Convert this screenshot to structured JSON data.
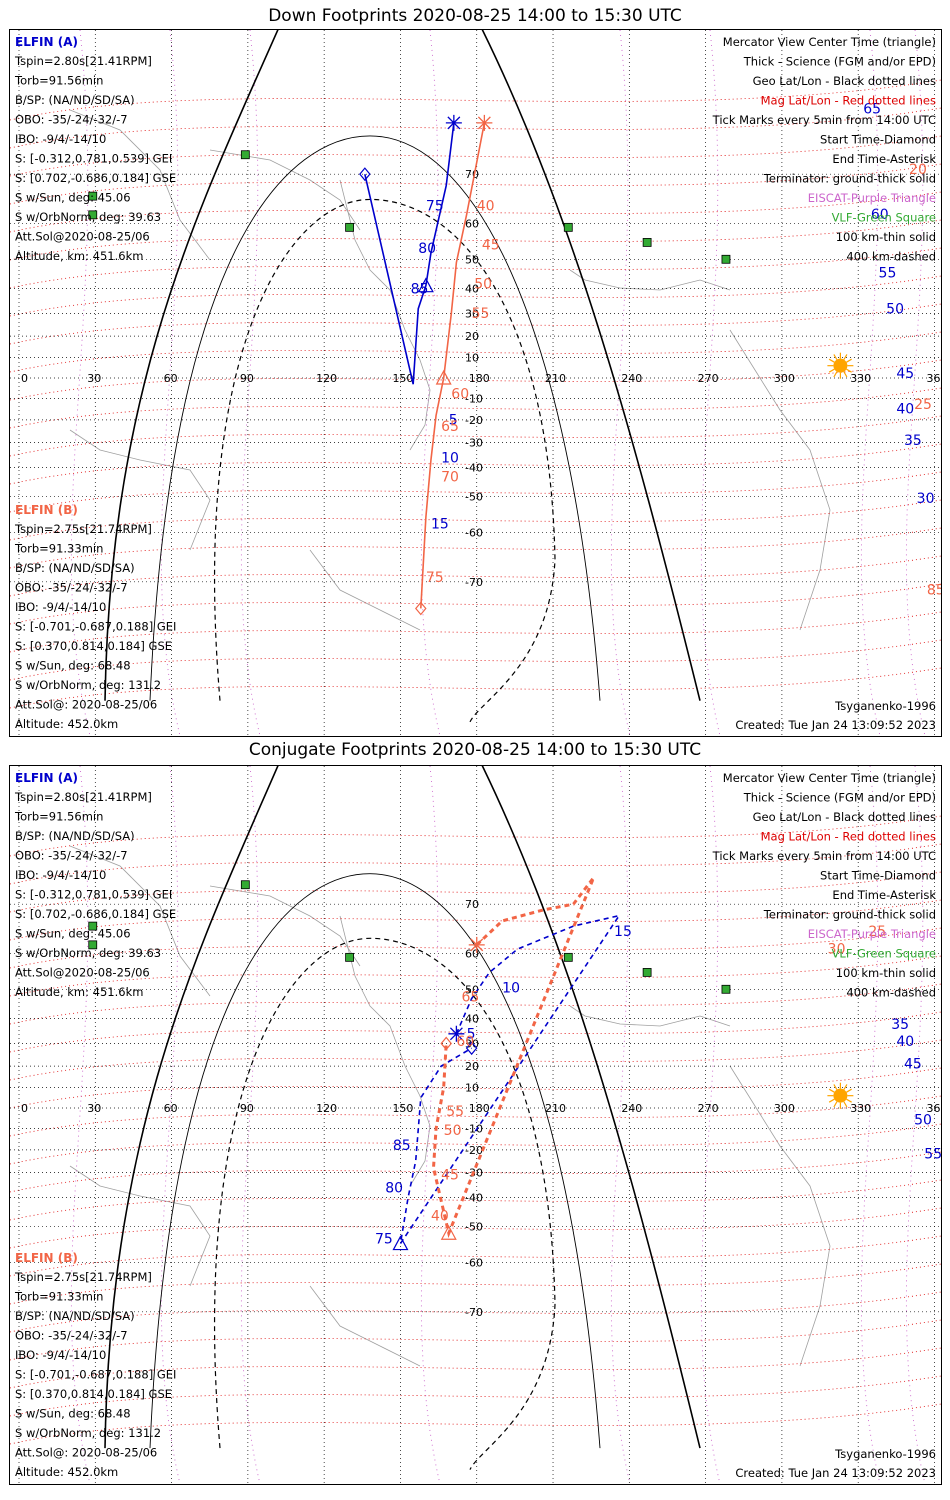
{
  "panels": [
    {
      "title": "Down Footprints 2020-08-25 14:00 to 15:30 UTC",
      "sat_a": {
        "name": "ELFIN (A)",
        "lines": [
          "Tspin=2.80s[21.41RPM]",
          "Torb=91.56min",
          "B/SP: (NA/ND/SD/SA)",
          "OBO: -35/-24/-32/-7",
          "IBO: -9/4/-14/10",
          "S: [-0.312,0.781,0.539] GEI",
          "S: [0.702,-0.686,0.184] GSE",
          "S w/Sun, deg: 45.06",
          "S w/OrbNorm, deg: 39.63",
          "Att.Sol@2020-08-25/06",
          "Altitude, km: 451.6km"
        ]
      },
      "sat_b": {
        "name": "ELFIN (B)",
        "lines": [
          "Tspin=2.75s[21.74RPM]",
          "Torb=91.33min",
          "B/SP: (NA/ND/SD/SA)",
          "OBO: -35/-24/-32/-7",
          "IBO: -9/4/-14/10",
          "S: [-0.701,-0.687,0.188] GEI",
          "S: [0.370,0.814,0.184] GSE",
          "S w/Sun, deg: 68.48",
          "S w/OrbNorm, deg: 131.2",
          "Att.Sol@: 2020-08-25/06",
          "Altitude: 452.0km"
        ]
      },
      "legend": [
        "Mercator View Center Time (triangle)",
        "Thick - Science (FGM and/or EPD)",
        "Geo Lat/Lon - Black dotted lines",
        "Mag Lat/Lon - Red dotted lines",
        "Tick Marks every 5min from 14:00 UTC",
        "Start Time-Diamond",
        "End Time-Asterisk",
        "Terminator: ground-thick solid",
        "EISCAT-Purple Triangle",
        "VLF-Green Square",
        "100 km-thin solid",
        "400 km-dashed"
      ],
      "model": "Tsyganenko-1996",
      "created": "Created: Tue Jan 24 13:09:52 2023"
    },
    {
      "title": "Conjugate Footprints 2020-08-25 14:00 to 15:30 UTC",
      "sat_a": {
        "name": "ELFIN (A)",
        "lines": [
          "Tspin=2.80s[21.41RPM]",
          "Torb=91.56min",
          "B/SP: (NA/ND/SD/SA)",
          "OBO: -35/-24/-32/-7",
          "IBO: -9/4/-14/10",
          "S: [-0.312,0.781,0.539] GEI",
          "S: [0.702,-0.686,0.184] GSE",
          "S w/Sun, deg: 45.06",
          "S w/OrbNorm, deg: 39.63",
          "Att.Sol@2020-08-25/06",
          "Altitude, km: 451.6km"
        ]
      },
      "sat_b": {
        "name": "ELFIN (B)",
        "lines": [
          "Tspin=2.75s[21.74RPM]",
          "Torb=91.33min",
          "B/SP: (NA/ND/SD/SA)",
          "OBO: -35/-24/-32/-7",
          "IBO: -9/4/-14/10",
          "S: [-0.701,-0.687,0.188] GEI",
          "S: [0.370,0.814,0.184] GSE",
          "S w/Sun, deg: 68.48",
          "S w/OrbNorm, deg: 131.2",
          "Att.Sol@: 2020-08-25/06",
          "Altitude: 452.0km"
        ]
      },
      "legend": [
        "Mercator View Center Time (triangle)",
        "Thick - Science (FGM and/or EPD)",
        "Geo Lat/Lon - Black dotted lines",
        "Mag Lat/Lon - Red dotted lines",
        "Tick Marks every 5min from 14:00 UTC",
        "Start Time-Diamond",
        "End Time-Asterisk",
        "Terminator: ground-thick solid",
        "EISCAT-Purple Triangle",
        "VLF-Green Square",
        "100 km-thin solid",
        "400 km-dashed"
      ],
      "model": "Tsyganenko-1996",
      "created": "Created: Tue Jan 24 13:09:52 2023"
    }
  ],
  "colors": {
    "sat_a": "#0000cc",
    "sat_b": "#f26546",
    "geo_grid": "#000000",
    "mag_grid": "#dd0000",
    "eiscat": "#cc66cc",
    "vlf": "#33aa33",
    "sun": "#ffa500",
    "coast": "#a0a0a0"
  },
  "chart_data": [
    {
      "type": "scatter",
      "title": "Down Footprints 2020-08-25 14:00 to 15:30 UTC",
      "lon_ticks": [
        0,
        30,
        60,
        90,
        120,
        150,
        180,
        210,
        240,
        270,
        300,
        330,
        360
      ],
      "lat_ticks": [
        70,
        60,
        50,
        40,
        30,
        20,
        10,
        -10,
        -20,
        -30,
        -40,
        -50,
        -60,
        -70
      ],
      "xlim": [
        0,
        360
      ],
      "ylim": [
        -80,
        80
      ],
      "grid": true,
      "vlf_stations": [
        [
          89,
          73
        ],
        [
          29,
          66
        ],
        [
          29,
          62
        ],
        [
          130,
          59
        ],
        [
          216,
          59
        ],
        [
          247,
          55
        ],
        [
          278,
          50
        ]
      ],
      "sun": [
        323,
        6
      ],
      "series": [
        {
          "name": "ELFIN (A)",
          "points": [
            [
              171,
              77
            ],
            [
              168,
              68
            ],
            [
              165,
              61
            ],
            [
              162,
              52
            ],
            [
              160,
              41
            ],
            [
              157,
              32
            ],
            [
              155,
              -3
            ],
            [
              136,
              70
            ]
          ],
          "tick_labels": [
            {
              "text": "75",
              "at": [
                160,
                63
              ]
            },
            {
              "text": "80",
              "at": [
                157,
                52
              ]
            },
            {
              "text": "85",
              "at": [
                154,
                38
              ]
            },
            {
              "text": "5",
              "at": [
                169,
                -22
              ]
            },
            {
              "text": "10",
              "at": [
                166,
                -38
              ]
            },
            {
              "text": "15",
              "at": [
                162,
                -59
              ]
            },
            {
              "text": "65",
              "at": [
                332,
                78
              ]
            },
            {
              "text": "60",
              "at": [
                335,
                61
              ]
            },
            {
              "text": "55",
              "at": [
                338,
                44
              ]
            },
            {
              "text": "50",
              "at": [
                341,
                30
              ]
            },
            {
              "text": "45",
              "at": [
                345,
                0
              ]
            },
            {
              "text": "40",
              "at": [
                345,
                -17
              ]
            },
            {
              "text": "35",
              "at": [
                348,
                -31
              ]
            },
            {
              "text": "30",
              "at": [
                353,
                -52
              ]
            }
          ]
        },
        {
          "name": "ELFIN (B)",
          "points": [
            [
              183,
              77
            ],
            [
              176,
              62
            ],
            [
              172,
              49
            ],
            [
              170,
              30
            ],
            [
              167,
              0
            ],
            [
              164,
              -18
            ],
            [
              162,
              -37
            ],
            [
              160,
              -56
            ],
            [
              158,
              -74
            ]
          ],
          "tick_labels": [
            {
              "text": "40",
              "at": [
                180,
                63
              ]
            },
            {
              "text": "45",
              "at": [
                182,
                53
              ]
            },
            {
              "text": "50",
              "at": [
                179,
                40
              ]
            },
            {
              "text": "55",
              "at": [
                178,
                28
              ]
            },
            {
              "text": "60",
              "at": [
                170,
                -10
              ]
            },
            {
              "text": "65",
              "at": [
                166,
                -25
              ]
            },
            {
              "text": "70",
              "at": [
                166,
                -45
              ]
            },
            {
              "text": "75",
              "at": [
                160,
                -70
              ]
            },
            {
              "text": "20",
              "at": [
                350,
                70
              ]
            },
            {
              "text": "25",
              "at": [
                352,
                -15
              ]
            },
            {
              "text": "85",
              "at": [
                357,
                -72
              ]
            }
          ]
        }
      ]
    },
    {
      "type": "scatter",
      "title": "Conjugate Footprints 2020-08-25 14:00 to 15:30 UTC",
      "lon_ticks": [
        0,
        30,
        60,
        90,
        120,
        150,
        180,
        210,
        240,
        270,
        300,
        330,
        360
      ],
      "lat_ticks": [
        70,
        60,
        50,
        40,
        30,
        20,
        10,
        -10,
        -20,
        -30,
        -40,
        -50,
        -60,
        -70
      ],
      "xlim": [
        0,
        360
      ],
      "ylim": [
        -80,
        80
      ],
      "grid": true,
      "vlf_stations": [
        [
          89,
          73
        ],
        [
          29,
          66
        ],
        [
          29,
          62
        ],
        [
          130,
          59
        ],
        [
          216,
          59
        ],
        [
          247,
          55
        ],
        [
          278,
          50
        ]
      ],
      "sun": [
        323,
        6
      ],
      "series": [
        {
          "name": "ELFIN (A)",
          "points": [
            [
              172,
              34
            ],
            [
              178,
              47
            ],
            [
              185,
              55
            ],
            [
              196,
              61
            ],
            [
              218,
              66
            ],
            [
              236,
              68
            ],
            [
              150,
              -55
            ],
            [
              153,
              -40
            ],
            [
              156,
              -25
            ],
            [
              158,
              5
            ],
            [
              166,
              20
            ],
            [
              178,
              28
            ]
          ],
          "tick_labels": [
            {
              "text": "15",
              "at": [
                234,
                64
              ]
            },
            {
              "text": "10",
              "at": [
                190,
                49
              ]
            },
            {
              "text": "5",
              "at": [
                176,
                32
              ]
            },
            {
              "text": "85",
              "at": [
                147,
                -20
              ]
            },
            {
              "text": "80",
              "at": [
                144,
                -38
              ]
            },
            {
              "text": "75",
              "at": [
                140,
                -55
              ]
            },
            {
              "text": "35",
              "at": [
                343,
                36
              ]
            },
            {
              "text": "40",
              "at": [
                345,
                29
              ]
            },
            {
              "text": "45",
              "at": [
                348,
                19
              ]
            },
            {
              "text": "50",
              "at": [
                352,
                -8
              ]
            },
            {
              "text": "55",
              "at": [
                356,
                -24
              ]
            }
          ]
        },
        {
          "name": "ELFIN (B)",
          "points": [
            [
              180,
              62
            ],
            [
              190,
              67
            ],
            [
              206,
              69
            ],
            [
              218,
              70
            ],
            [
              226,
              74
            ],
            [
              169,
              -52
            ],
            [
              163,
              -28
            ],
            [
              164,
              -10
            ],
            [
              167,
              10
            ],
            [
              168,
              30
            ]
          ],
          "tick_labels": [
            {
              "text": "60",
              "at": [
                172,
                29
              ]
            },
            {
              "text": "65",
              "at": [
                174,
                46
              ]
            },
            {
              "text": "55",
              "at": [
                168,
                -4
              ]
            },
            {
              "text": "50",
              "at": [
                167,
                -13
              ]
            },
            {
              "text": "45",
              "at": [
                166,
                -33
              ]
            },
            {
              "text": "40",
              "at": [
                162,
                -48
              ]
            },
            {
              "text": "30",
              "at": [
                318,
                60
              ]
            },
            {
              "text": "25",
              "at": [
                334,
                64
              ]
            }
          ]
        }
      ]
    }
  ]
}
